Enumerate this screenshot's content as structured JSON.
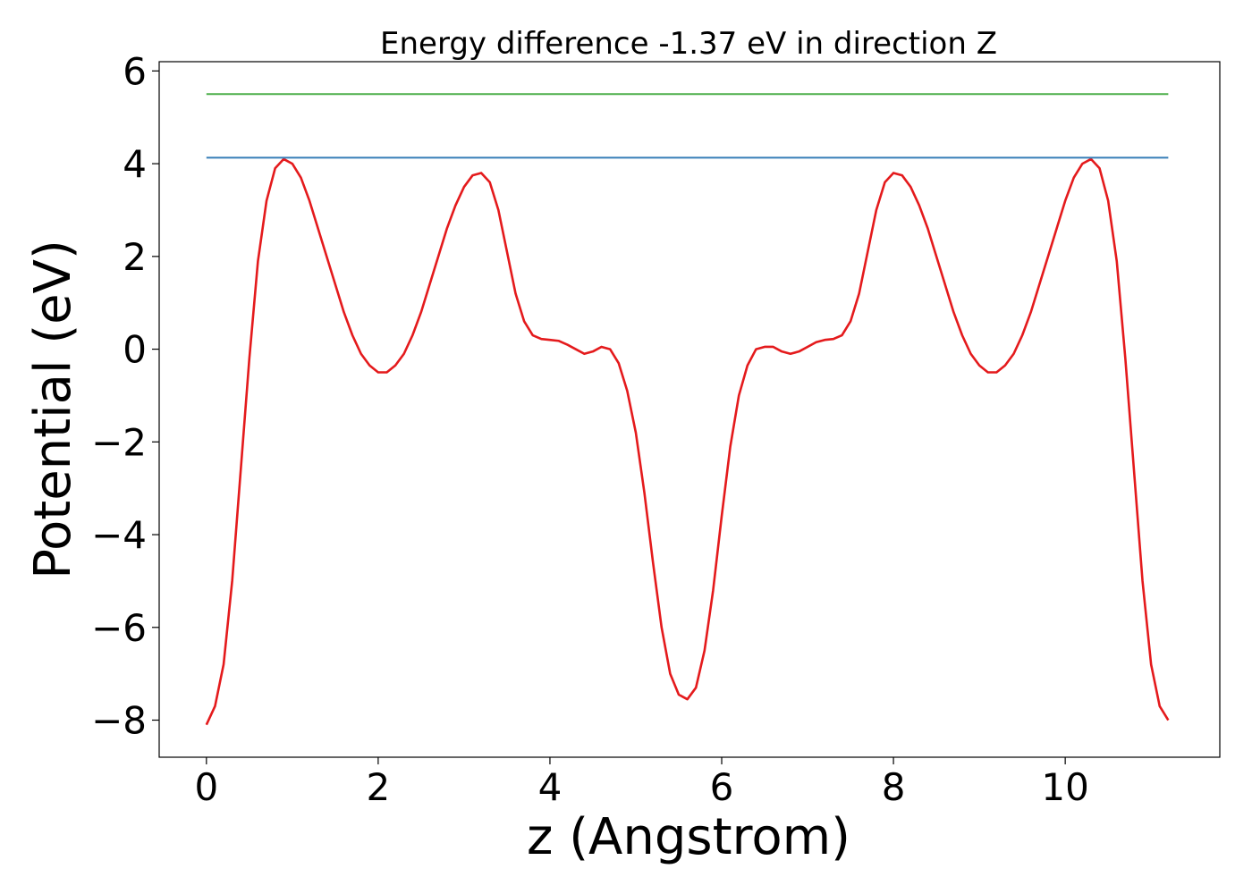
{
  "chart_data": {
    "type": "line",
    "title": "Energy difference -1.37 eV in direction Z",
    "xlabel": "z (Angstrom)",
    "ylabel": "Potential (eV)",
    "xlim": [
      -0.55,
      11.8
    ],
    "ylim": [
      -8.8,
      6.2
    ],
    "x_ticks": [
      0,
      2,
      4,
      6,
      8,
      10
    ],
    "x_tick_labels": [
      "0",
      "2",
      "4",
      "6",
      "8",
      "10"
    ],
    "y_ticks": [
      -8,
      -6,
      -4,
      -2,
      0,
      2,
      4,
      6
    ],
    "y_tick_labels": [
      "−8",
      "−6",
      "−4",
      "−2",
      "0",
      "2",
      "4",
      "6"
    ],
    "grid": false,
    "legend": "none",
    "series": [
      {
        "color": "#e41a1c",
        "style": "solid",
        "x": [
          0.0,
          0.1,
          0.2,
          0.3,
          0.4,
          0.5,
          0.6,
          0.7,
          0.8,
          0.9,
          1.0,
          1.1,
          1.2,
          1.3,
          1.4,
          1.5,
          1.6,
          1.7,
          1.8,
          1.9,
          2.0,
          2.1,
          2.2,
          2.3,
          2.4,
          2.5,
          2.6,
          2.7,
          2.8,
          2.9,
          3.0,
          3.1,
          3.2,
          3.3,
          3.4,
          3.5,
          3.6,
          3.7,
          3.8,
          3.9,
          4.0,
          4.1,
          4.2,
          4.3,
          4.4,
          4.5,
          4.6,
          4.7,
          4.8,
          4.9,
          5.0,
          5.1,
          5.2,
          5.3,
          5.4,
          5.5,
          5.6,
          5.7,
          5.8,
          5.9,
          6.0,
          6.1,
          6.2,
          6.3,
          6.4,
          6.5,
          6.6,
          6.7,
          6.8,
          6.9,
          7.0,
          7.1,
          7.2,
          7.3,
          7.4,
          7.5,
          7.6,
          7.7,
          7.8,
          7.9,
          8.0,
          8.1,
          8.2,
          8.3,
          8.4,
          8.5,
          8.6,
          8.7,
          8.8,
          8.9,
          9.0,
          9.1,
          9.2,
          9.3,
          9.4,
          9.5,
          9.6,
          9.7,
          9.8,
          9.9,
          10.0,
          10.1,
          10.2,
          10.3,
          10.4,
          10.5,
          10.6,
          10.7,
          10.8,
          10.9,
          11.0,
          11.1,
          11.2
        ],
        "y": [
          -8.1,
          -7.7,
          -6.8,
          -5.0,
          -2.6,
          -0.2,
          1.9,
          3.2,
          3.9,
          4.1,
          4.0,
          3.7,
          3.2,
          2.6,
          2.0,
          1.4,
          0.8,
          0.3,
          -0.1,
          -0.35,
          -0.5,
          -0.5,
          -0.35,
          -0.1,
          0.3,
          0.8,
          1.4,
          2.0,
          2.6,
          3.1,
          3.5,
          3.75,
          3.8,
          3.6,
          3.0,
          2.1,
          1.2,
          0.6,
          0.3,
          0.22,
          0.2,
          0.18,
          0.1,
          0.0,
          -0.1,
          -0.05,
          0.05,
          0.0,
          -0.3,
          -0.9,
          -1.8,
          -3.1,
          -4.6,
          -6.0,
          -7.0,
          -7.45,
          -7.55,
          -7.3,
          -6.5,
          -5.2,
          -3.6,
          -2.1,
          -1.0,
          -0.35,
          0.0,
          0.05,
          0.05,
          -0.05,
          -0.1,
          -0.05,
          0.05,
          0.15,
          0.2,
          0.22,
          0.3,
          0.6,
          1.2,
          2.1,
          3.0,
          3.6,
          3.8,
          3.75,
          3.5,
          3.1,
          2.6,
          2.0,
          1.4,
          0.8,
          0.3,
          -0.1,
          -0.35,
          -0.5,
          -0.5,
          -0.35,
          -0.1,
          0.3,
          0.8,
          1.4,
          2.0,
          2.6,
          3.2,
          3.7,
          4.0,
          4.1,
          3.9,
          3.2,
          1.9,
          -0.2,
          -2.6,
          -5.0,
          -6.8,
          -7.7,
          -8.0
        ]
      },
      {
        "color": "#377eb8",
        "style": "solid",
        "x": [
          0.0,
          11.2
        ],
        "y": [
          4.13,
          4.13
        ]
      },
      {
        "color": "#4daf4a",
        "style": "solid",
        "x": [
          0.0,
          11.2
        ],
        "y": [
          5.5,
          5.5
        ]
      }
    ]
  }
}
